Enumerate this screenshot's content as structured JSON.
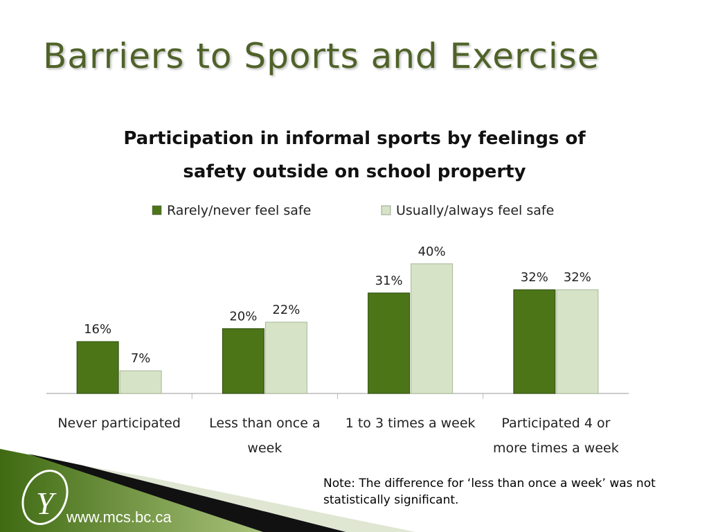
{
  "slide_title": "Barriers to Sports and Exercise",
  "chart_data": {
    "type": "bar",
    "title": "Participation in informal sports by feelings of safety outside on school property",
    "categories": [
      "Never participated",
      "Less than once a week",
      "1 to 3 times a week",
      "Participated 4 or more times a week"
    ],
    "series": [
      {
        "name": "Rarely/never feel safe",
        "color": "#4c7518",
        "values": [
          16,
          20,
          31,
          32
        ],
        "value_labels": [
          "16%",
          "20%",
          "31%",
          "32%"
        ]
      },
      {
        "name": "Usually/always feel safe",
        "color": "#d6e3c6",
        "values": [
          7,
          22,
          40,
          32
        ],
        "value_labels": [
          "7%",
          "22%",
          "40%",
          "32%"
        ]
      }
    ]
  },
  "note": "Note: The difference for ‘less than once a week’ was not statistically significant.",
  "footer": {
    "website": "www.mcs.bc.ca"
  }
}
